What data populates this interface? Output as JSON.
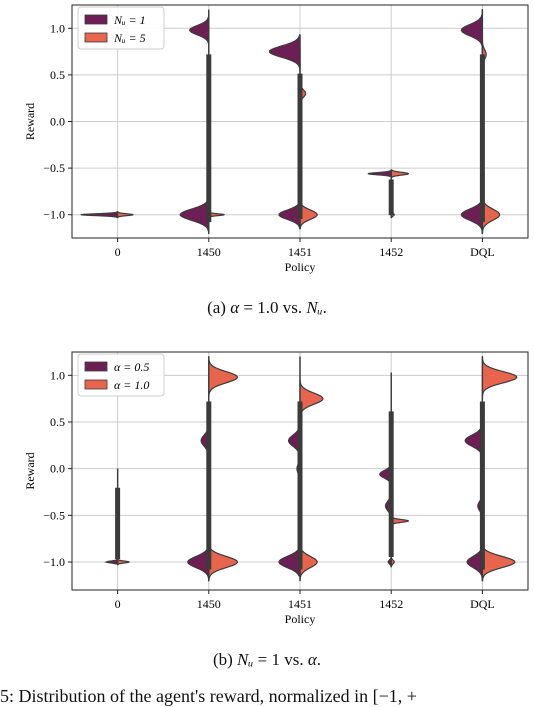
{
  "chart_data": [
    {
      "type": "violin",
      "panel": "a",
      "xlabel": "Policy",
      "ylabel": "Reward",
      "categories": [
        "0",
        "1450",
        "1451",
        "1452",
        "DQL"
      ],
      "ylim": [
        -1.25,
        1.25
      ],
      "yticks": [
        "1.0",
        "0.5",
        "0.0",
        "−0.5",
        "−1.0"
      ],
      "ytick_values": [
        1.0,
        0.5,
        0.0,
        -0.5,
        -1.0
      ],
      "grid": true,
      "legend_position": "top-left",
      "split": true,
      "series": [
        {
          "name": "N_u = 1",
          "legend_label": "Nᵤ = 1",
          "color": "#6d1f55",
          "side": "left",
          "violins": [
            {
              "category": "0",
              "modes": [
                [
                  -1.0,
                  0.01,
                  0.95
                ]
              ]
            },
            {
              "category": "1450",
              "modes": [
                [
                  0.98,
                  0.05,
                  0.5
                ],
                [
                  -1.0,
                  0.06,
                  0.75
                ]
              ],
              "range": [
                -1.2,
                1.2
              ]
            },
            {
              "category": "1451",
              "modes": [
                [
                  0.75,
                  0.06,
                  0.8
                ],
                [
                  -1.0,
                  0.05,
                  0.55
                ]
              ],
              "range": [
                -1.15,
                0.93
              ]
            },
            {
              "category": "1452",
              "modes": [
                [
                  -0.56,
                  0.012,
                  0.6
                ]
              ],
              "range": [
                -0.6,
                -0.52
              ]
            },
            {
              "category": "DQL",
              "modes": [
                [
                  0.98,
                  0.06,
                  0.55
                ],
                [
                  -1.0,
                  0.06,
                  0.55
                ]
              ],
              "range": [
                -1.2,
                1.2
              ]
            }
          ]
        },
        {
          "name": "N_u = 5",
          "legend_label": "Nᵤ = 5",
          "color": "#e8654d",
          "side": "right",
          "violins": [
            {
              "category": "0",
              "modes": [
                [
                  -1.0,
                  0.01,
                  0.4
                ]
              ]
            },
            {
              "category": "1450",
              "modes": [
                [
                  -1.0,
                  0.01,
                  0.4
                ]
              ]
            },
            {
              "category": "1451",
              "modes": [
                [
                  0.3,
                  0.04,
                  0.15
                ],
                [
                  -1.0,
                  0.05,
                  0.45
                ]
              ],
              "range": [
                -1.15,
                0.78
              ]
            },
            {
              "category": "1452",
              "modes": [
                [
                  -0.56,
                  0.015,
                  0.45
                ],
                [
                  -1.0,
                  0.015,
                  0.08
                ]
              ],
              "range": [
                -1.03,
                -0.52
              ]
            },
            {
              "category": "DQL",
              "modes": [
                [
                  0.72,
                  0.05,
                  0.1
                ],
                [
                  -1.0,
                  0.06,
                  0.45
                ]
              ],
              "range": [
                -1.2,
                1.2
              ]
            }
          ]
        }
      ]
    },
    {
      "type": "violin",
      "panel": "b",
      "xlabel": "Policy",
      "ylabel": "Reward",
      "categories": [
        "0",
        "1450",
        "1451",
        "1452",
        "DQL"
      ],
      "ylim": [
        -1.3,
        1.25
      ],
      "yticks": [
        "1.0",
        "0.5",
        "0.0",
        "−0.5",
        "−1.0"
      ],
      "ytick_values": [
        1.0,
        0.5,
        0.0,
        -0.5,
        -1.0
      ],
      "grid": true,
      "legend_position": "top-left",
      "split": true,
      "series": [
        {
          "name": "alpha = 0.5",
          "legend_label": "α = 0.5",
          "color": "#6d1f55",
          "side": "left",
          "violins": [
            {
              "category": "0",
              "modes": [
                [
                  -1.0,
                  0.01,
                  0.3
                ]
              ],
              "range": [
                -1.02,
                0.0
              ]
            },
            {
              "category": "1450",
              "modes": [
                [
                  0.3,
                  0.06,
                  0.2
                ],
                [
                  -1.0,
                  0.06,
                  0.55
                ]
              ],
              "range": [
                -1.2,
                0.5
              ]
            },
            {
              "category": "1451",
              "modes": [
                [
                  0.3,
                  0.06,
                  0.3
                ],
                [
                  0.0,
                  0.05,
                  0.08
                ],
                [
                  -1.0,
                  0.06,
                  0.55
                ]
              ],
              "range": [
                -1.15,
                1.2
              ]
            },
            {
              "category": "1452",
              "modes": [
                [
                  -0.06,
                  0.04,
                  0.3
                ],
                [
                  -0.4,
                  0.05,
                  0.15
                ],
                [
                  -1.0,
                  0.02,
                  0.08
                ]
              ],
              "range": [
                -1.05,
                1.03
              ]
            },
            {
              "category": "DQL",
              "modes": [
                [
                  0.3,
                  0.06,
                  0.45
                ],
                [
                  -0.4,
                  0.05,
                  0.12
                ],
                [
                  -1.0,
                  0.06,
                  0.4
                ]
              ],
              "range": [
                -1.2,
                0.6
              ]
            }
          ]
        },
        {
          "name": "alpha = 1.0",
          "legend_label": "α = 1.0",
          "color": "#e8654d",
          "side": "right",
          "violins": [
            {
              "category": "0",
              "modes": [
                [
                  -1.0,
                  0.01,
                  0.3
                ]
              ]
            },
            {
              "category": "1450",
              "modes": [
                [
                  0.98,
                  0.06,
                  0.75
                ],
                [
                  -1.0,
                  0.06,
                  0.75
                ]
              ],
              "range": [
                -1.2,
                1.2
              ]
            },
            {
              "category": "1451",
              "modes": [
                [
                  0.75,
                  0.06,
                  0.6
                ],
                [
                  -1.0,
                  0.06,
                  0.45
                ]
              ],
              "range": [
                -1.2,
                0.95
              ]
            },
            {
              "category": "1452",
              "modes": [
                [
                  -0.56,
                  0.015,
                  0.45
                ],
                [
                  -1.0,
                  0.02,
                  0.08
                ]
              ],
              "range": [
                -1.05,
                -0.52
              ]
            },
            {
              "category": "DQL",
              "modes": [
                [
                  0.98,
                  0.06,
                  0.9
                ],
                [
                  -1.0,
                  0.06,
                  0.85
                ]
              ],
              "range": [
                -1.2,
                1.2
              ]
            }
          ]
        }
      ]
    }
  ],
  "captions": {
    "a_prefix": "(a) ",
    "a_sym1": "α",
    "a_mid": " = 1.0 vs. ",
    "a_sym2": "Nᵤ",
    "a_end": ".",
    "b_prefix": "(b) ",
    "b_sym1": "Nᵤ",
    "b_mid": " = 1 vs. ",
    "b_sym2": "α",
    "b_end": "."
  },
  "figure_caption": "5: Distribution of the agent's reward, normalized in [−1, +"
}
